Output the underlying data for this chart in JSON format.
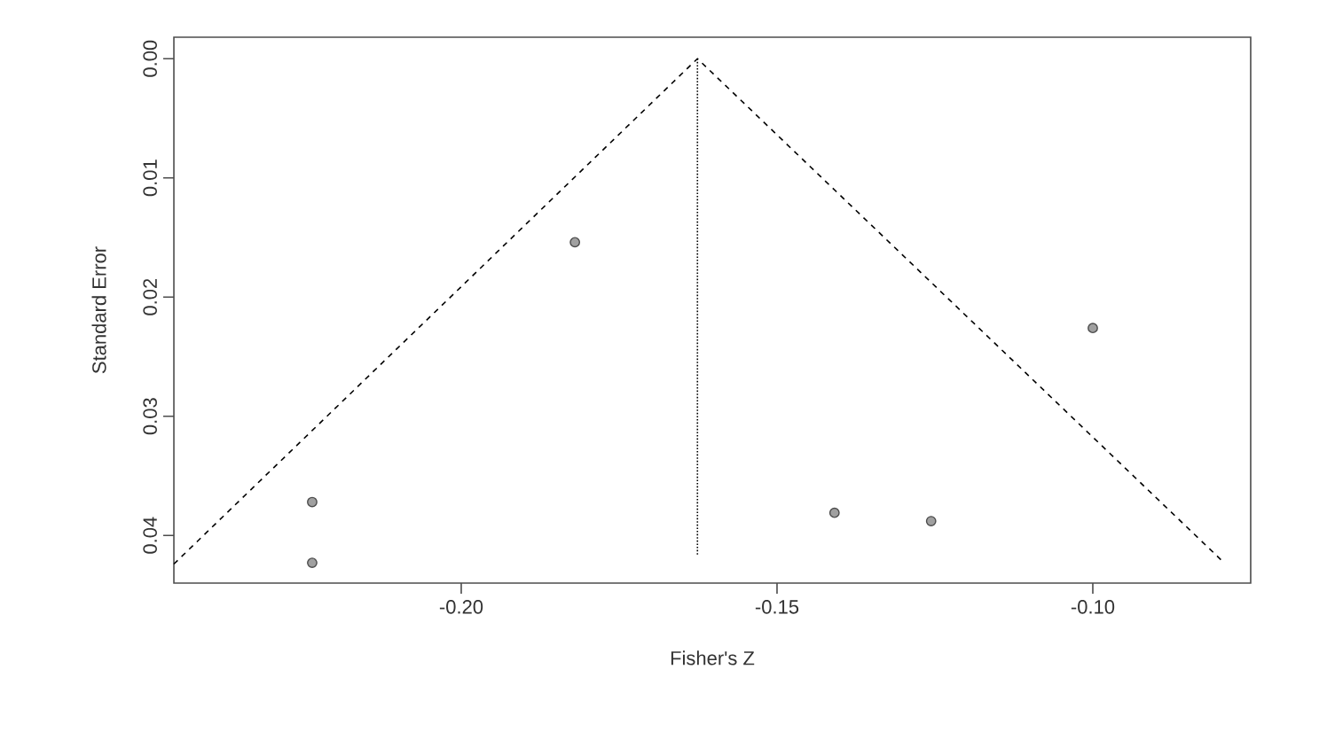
{
  "chart_data": {
    "type": "scatter",
    "xlabel": "Fisher's Z",
    "ylabel": "Standard Error",
    "xlim": [
      -0.2455,
      -0.075
    ],
    "ylim": [
      0.044,
      -0.0018
    ],
    "xticks": [
      {
        "value": -0.2,
        "label": "-0.20"
      },
      {
        "value": -0.15,
        "label": "-0.15"
      },
      {
        "value": -0.1,
        "label": "-0.10"
      }
    ],
    "yticks": [
      {
        "value": 0,
        "label": "0.00"
      },
      {
        "value": 0.01,
        "label": "0.01"
      },
      {
        "value": 0.02,
        "label": "0.02"
      },
      {
        "value": 0.03,
        "label": "0.03"
      },
      {
        "value": 0.04,
        "label": "0.04"
      }
    ],
    "series": [
      {
        "type": "line",
        "color": "#000000",
        "line_style": "dashed",
        "marker": "none",
        "x": [
          -0.2455,
          -0.1626,
          -0.0794
        ],
        "values": [
          0.0424,
          0,
          0.0422
        ]
      },
      {
        "type": "line",
        "color": "#000000",
        "line_style": "dotted",
        "marker": "none",
        "x": [
          -0.1626,
          -0.1626
        ],
        "values": [
          0,
          0.0417
        ]
      },
      {
        "color": "#a0a0a0",
        "marker": "circle",
        "x": [
          -0.2236,
          -0.2236,
          -0.182,
          -0.1,
          -0.1409,
          -0.1256
        ],
        "values": [
          0.0372,
          0.0423,
          0.0154,
          0.0226,
          0.0381,
          0.0388
        ]
      }
    ]
  }
}
